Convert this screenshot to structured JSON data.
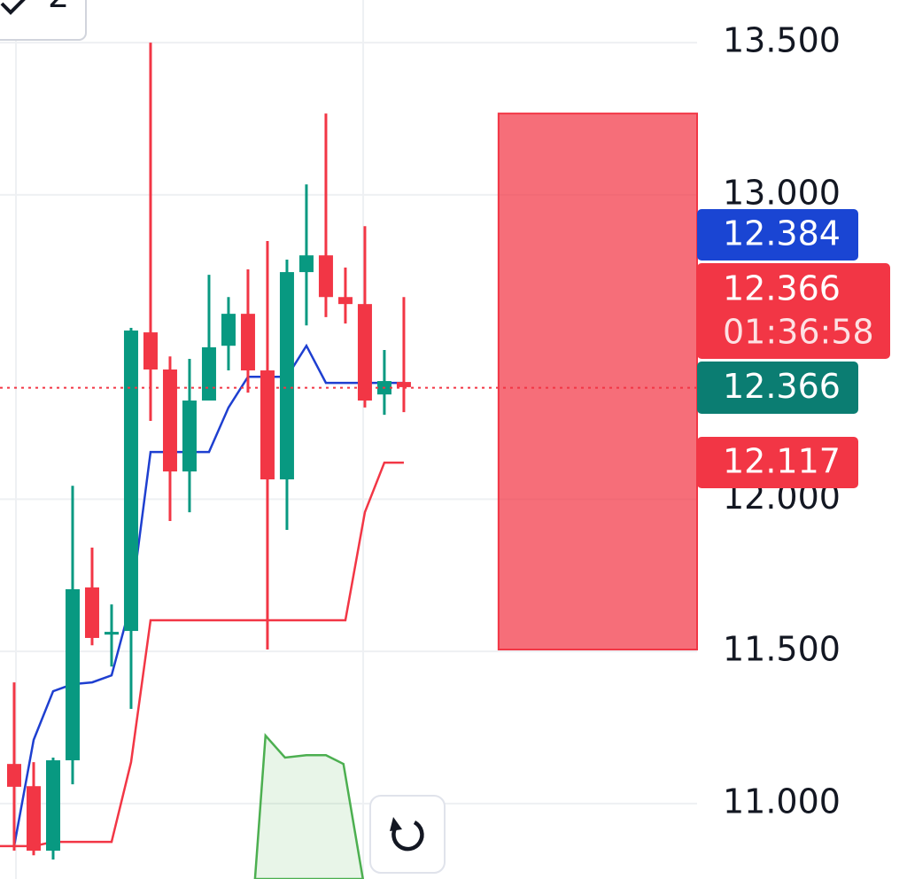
{
  "chart_data": {
    "type": "candlestick",
    "badge": "2",
    "x": [
      0,
      1,
      2,
      3,
      4,
      5,
      6,
      7,
      8,
      9,
      10,
      11,
      12,
      13,
      14,
      15,
      16,
      17,
      18,
      19,
      20
    ],
    "open": [
      11.13,
      11.057,
      10.845,
      11.142,
      11.71,
      11.555,
      11.567,
      12.548,
      12.426,
      12.091,
      12.324,
      12.504,
      12.609,
      12.423,
      12.065,
      12.746,
      12.801,
      12.664,
      12.641,
      12.344,
      12.385
    ],
    "close": [
      11.055,
      10.845,
      11.142,
      11.704,
      11.544,
      11.564,
      12.554,
      12.426,
      12.091,
      12.324,
      12.499,
      12.609,
      12.423,
      12.065,
      12.746,
      12.801,
      12.664,
      12.641,
      12.324,
      12.388,
      12.368
    ],
    "high": [
      11.398,
      11.136,
      11.151,
      12.044,
      11.841,
      11.654,
      12.563,
      13.5,
      12.469,
      12.461,
      12.737,
      12.664,
      12.755,
      12.848,
      12.787,
      13.034,
      13.267,
      12.761,
      12.897,
      12.49,
      12.664
    ],
    "low": [
      10.845,
      10.83,
      10.816,
      11.063,
      11.52,
      11.45,
      11.311,
      12.257,
      11.928,
      11.957,
      12.324,
      12.423,
      12.35,
      11.506,
      11.899,
      12.571,
      12.598,
      12.577,
      12.301,
      12.277,
      12.286
    ],
    "up_color": "#089981",
    "down_color": "#f23645",
    "lines": [
      {
        "color": "#1e3fd0",
        "x": [
          0,
          1,
          2,
          3,
          4,
          5,
          6,
          7,
          8,
          9,
          10,
          11,
          12,
          13,
          14,
          15,
          16,
          17,
          18,
          19,
          20
        ],
        "values": [
          10.86,
          11.209,
          11.369,
          11.392,
          11.398,
          11.421,
          11.66,
          12.155,
          12.155,
          12.155,
          12.155,
          12.301,
          12.402,
          12.402,
          12.402,
          12.504,
          12.382,
          12.382,
          12.382,
          12.382,
          12.382
        ]
      },
      {
        "color": "#f23645",
        "x": [
          -0.73,
          1,
          2,
          5,
          6,
          7,
          17,
          18,
          19,
          20
        ],
        "values": [
          10.86,
          10.86,
          10.874,
          10.874,
          11.136,
          11.602,
          11.602,
          11.957,
          12.12,
          12.12
        ]
      }
    ],
    "area": {
      "color": "#4caf50",
      "x": [
        12.36,
        12.9,
        13.9,
        15,
        16,
        16.9,
        17.9
      ],
      "values": [
        10.752,
        11.223,
        11.151,
        11.159,
        11.159,
        11.13,
        10.752
      ]
    },
    "zone": {
      "color": "#f23645",
      "x": [
        24.86,
        35.05
      ],
      "y": [
        11.506,
        13.267
      ]
    },
    "price_labels": [
      {
        "value": 12.384,
        "color": "#1a45d3"
      },
      {
        "value": 12.366,
        "sublabel": "01:36:58",
        "color": "#f23645"
      },
      {
        "value": 12.366,
        "color": "#0b7d72"
      },
      {
        "value": 12.117,
        "color": "#f23645"
      }
    ],
    "xlim": [
      -0.727,
      35.05
    ],
    "ylim": [
      10.752,
      13.64
    ],
    "yticks": [
      {
        "value": 13.5,
        "label": "13.500"
      },
      {
        "value": 13.0,
        "label": "13.000"
      },
      {
        "value": 12.0,
        "label": "12.000"
      },
      {
        "value": 11.5,
        "label": "11.500"
      },
      {
        "value": 11.0,
        "label": "11.000"
      }
    ],
    "grid": true
  }
}
